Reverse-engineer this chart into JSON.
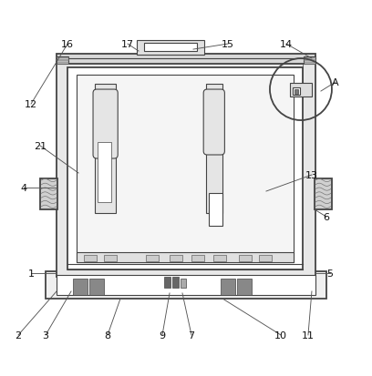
{
  "figsize": [
    4.08,
    4.14
  ],
  "dpi": 100,
  "bg_color": "#ffffff",
  "lc": "#444444",
  "annotations": {
    "16": {
      "lpos": [
        0.175,
        0.895
      ],
      "tpos": [
        0.145,
        0.845
      ]
    },
    "17": {
      "lpos": [
        0.34,
        0.895
      ],
      "tpos": [
        0.37,
        0.875
      ]
    },
    "15": {
      "lpos": [
        0.615,
        0.895
      ],
      "tpos": [
        0.52,
        0.88
      ]
    },
    "14": {
      "lpos": [
        0.775,
        0.895
      ],
      "tpos": [
        0.845,
        0.855
      ]
    },
    "12": {
      "lpos": [
        0.075,
        0.73
      ],
      "tpos": [
        0.145,
        0.845
      ]
    },
    "21": {
      "lpos": [
        0.1,
        0.615
      ],
      "tpos": [
        0.205,
        0.54
      ]
    },
    "4": {
      "lpos": [
        0.055,
        0.5
      ],
      "tpos": [
        0.145,
        0.5
      ]
    },
    "6": {
      "lpos": [
        0.885,
        0.42
      ],
      "tpos": [
        0.852,
        0.44
      ]
    },
    "13": {
      "lpos": [
        0.845,
        0.535
      ],
      "tpos": [
        0.72,
        0.49
      ]
    },
    "A": {
      "lpos": [
        0.91,
        0.79
      ],
      "tpos": [
        0.87,
        0.765
      ]
    },
    "1": {
      "lpos": [
        0.075,
        0.265
      ],
      "tpos": [
        0.145,
        0.265
      ]
    },
    "5": {
      "lpos": [
        0.895,
        0.265
      ],
      "tpos": [
        0.852,
        0.265
      ]
    },
    "2": {
      "lpos": [
        0.04,
        0.095
      ],
      "tpos": [
        0.145,
        0.215
      ]
    },
    "3": {
      "lpos": [
        0.115,
        0.095
      ],
      "tpos": [
        0.185,
        0.215
      ]
    },
    "8": {
      "lpos": [
        0.285,
        0.095
      ],
      "tpos": [
        0.32,
        0.195
      ]
    },
    "9": {
      "lpos": [
        0.435,
        0.095
      ],
      "tpos": [
        0.455,
        0.21
      ]
    },
    "7": {
      "lpos": [
        0.515,
        0.095
      ],
      "tpos": [
        0.49,
        0.21
      ]
    },
    "10": {
      "lpos": [
        0.76,
        0.095
      ],
      "tpos": [
        0.6,
        0.195
      ]
    },
    "11": {
      "lpos": [
        0.835,
        0.095
      ],
      "tpos": [
        0.845,
        0.215
      ]
    }
  }
}
